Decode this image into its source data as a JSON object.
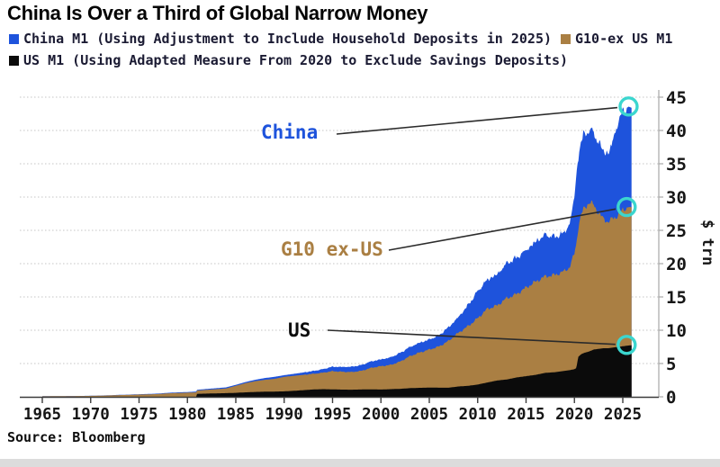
{
  "title": "China Is Over a Third of Global Narrow Money",
  "source": "Source: Bloomberg",
  "legend": [
    {
      "label": "China M1 (Using Adjustment to Include Household Deposits in 2025)",
      "color": "#1e53dc"
    },
    {
      "label": "G10-ex US M1",
      "color": "#aa7f43"
    },
    {
      "label": "US M1 (Using Adapted Measure From 2020 to Exclude Savings Deposits)",
      "color": "#0b0b0b"
    }
  ],
  "chart_data": {
    "type": "area",
    "stacked": true,
    "title": "China Is Over a Third of Global Narrow Money",
    "ylabel": "$ trn",
    "ylim": [
      0,
      45
    ],
    "yticks": [
      0,
      5,
      10,
      15,
      20,
      25,
      30,
      35,
      40,
      45
    ],
    "xticks": [
      1965,
      1970,
      1975,
      1980,
      1985,
      1990,
      1995,
      2000,
      2005,
      2010,
      2015,
      2020,
      2025
    ],
    "grid": "horizontal-dotted",
    "legend_position": "top",
    "columns": [
      "year",
      "us_m1_stack_top",
      "g10_ex_us_stack_top",
      "china_stack_top_total"
    ],
    "points": [
      [
        1965,
        0,
        0.08,
        0.09
      ],
      [
        1966,
        0,
        0.09,
        0.1
      ],
      [
        1967,
        0,
        0.1,
        0.11
      ],
      [
        1968,
        0,
        0.11,
        0.12
      ],
      [
        1969,
        0,
        0.12,
        0.13
      ],
      [
        1970,
        0,
        0.14,
        0.16
      ],
      [
        1971,
        0,
        0.17,
        0.19
      ],
      [
        1972,
        0,
        0.21,
        0.24
      ],
      [
        1973,
        0,
        0.26,
        0.3
      ],
      [
        1974,
        0,
        0.29,
        0.33
      ],
      [
        1975,
        0,
        0.34,
        0.39
      ],
      [
        1976,
        0,
        0.37,
        0.43
      ],
      [
        1977,
        0,
        0.42,
        0.49
      ],
      [
        1978,
        0,
        0.52,
        0.6
      ],
      [
        1979,
        0,
        0.58,
        0.67
      ],
      [
        1980,
        0,
        0.62,
        0.72
      ],
      [
        1980.9,
        0,
        0.67,
        0.78
      ],
      [
        1981,
        0.45,
        0.95,
        1.06
      ],
      [
        1982,
        0.48,
        1.05,
        1.18
      ],
      [
        1983,
        0.52,
        1.15,
        1.3
      ],
      [
        1984,
        0.55,
        1.25,
        1.42
      ],
      [
        1985,
        0.6,
        1.65,
        1.8
      ],
      [
        1986,
        0.67,
        2.05,
        2.22
      ],
      [
        1987,
        0.73,
        2.35,
        2.56
      ],
      [
        1988,
        0.77,
        2.55,
        2.82
      ],
      [
        1989,
        0.79,
        2.7,
        3.0
      ],
      [
        1990,
        0.82,
        3.0,
        3.25
      ],
      [
        1991,
        0.9,
        3.15,
        3.45
      ],
      [
        1992,
        1.0,
        3.3,
        3.66
      ],
      [
        1993,
        1.1,
        3.45,
        3.88
      ],
      [
        1994,
        1.15,
        3.62,
        4.15
      ],
      [
        1995,
        1.12,
        3.85,
        4.52
      ],
      [
        1996,
        1.08,
        3.76,
        4.48
      ],
      [
        1997,
        1.07,
        3.72,
        4.52
      ],
      [
        1998,
        1.1,
        3.9,
        4.78
      ],
      [
        1999,
        1.12,
        4.35,
        5.32
      ],
      [
        2000,
        1.09,
        4.6,
        5.62
      ],
      [
        2001,
        1.15,
        4.78,
        5.92
      ],
      [
        2002,
        1.2,
        5.3,
        6.6
      ],
      [
        2003,
        1.3,
        6.1,
        7.48
      ],
      [
        2004,
        1.35,
        6.65,
        8.12
      ],
      [
        2005,
        1.38,
        7.1,
        8.6
      ],
      [
        2006,
        1.37,
        7.55,
        9.25
      ],
      [
        2007,
        1.37,
        8.4,
        10.45
      ],
      [
        2008,
        1.55,
        9.6,
        11.95
      ],
      [
        2009,
        1.65,
        10.6,
        13.75
      ],
      [
        2010,
        1.84,
        11.8,
        15.85
      ],
      [
        2011,
        2.15,
        13.2,
        17.6
      ],
      [
        2012,
        2.45,
        13.7,
        18.35
      ],
      [
        2013,
        2.6,
        14.8,
        20.05
      ],
      [
        2014,
        2.9,
        15.4,
        20.85
      ],
      [
        2015,
        3.1,
        16.4,
        22.0
      ],
      [
        2016,
        3.3,
        17.3,
        23.3
      ],
      [
        2017,
        3.6,
        18.1,
        24.35
      ],
      [
        2018,
        3.7,
        18.3,
        24.0
      ],
      [
        2019,
        3.9,
        18.9,
        24.7
      ],
      [
        2019.5,
        4.0,
        19.5,
        26.0
      ],
      [
        2020,
        4.15,
        21.5,
        30.0
      ],
      [
        2020.2,
        4.3,
        23.0,
        33.0
      ],
      [
        2020.4,
        6.0,
        25.5,
        36.2
      ],
      [
        2020.7,
        6.4,
        27.3,
        38.4
      ],
      [
        2021,
        6.6,
        28.3,
        39.3
      ],
      [
        2021.5,
        6.8,
        29.2,
        40.1
      ],
      [
        2022,
        7.1,
        28.8,
        39.6
      ],
      [
        2022.5,
        7.2,
        27.6,
        38.2
      ],
      [
        2023,
        7.3,
        26.7,
        36.9
      ],
      [
        2023.5,
        7.3,
        26.3,
        36.5
      ],
      [
        2024,
        7.4,
        26.8,
        38.6
      ],
      [
        2024.3,
        7.45,
        27.0,
        40.0
      ],
      [
        2024.6,
        7.5,
        27.5,
        41.8
      ],
      [
        2025,
        7.6,
        28.0,
        42.6
      ],
      [
        2025.3,
        7.65,
        28.3,
        43.2
      ],
      [
        2025.6,
        7.7,
        28.5,
        43.6
      ],
      [
        2025.9,
        7.75,
        28.5,
        43.4
      ]
    ],
    "series": [
      {
        "name": "US M1",
        "color": "#0b0b0b"
      },
      {
        "name": "G10-ex US M1",
        "color": "#aa7f43"
      },
      {
        "name": "China M1",
        "color": "#1e53dc"
      }
    ],
    "annotations": [
      {
        "label": "China",
        "color": "#1e53dc",
        "target_year": 2025.6,
        "target_value": 43.6
      },
      {
        "label": "G10 ex-US",
        "color": "#aa7f43",
        "target_year": 2025.4,
        "target_value": 28.5
      },
      {
        "label": "US",
        "color": "#0d0d0d",
        "target_year": 2025.4,
        "target_value": 7.8
      }
    ],
    "marker_color": "#3bd6cf"
  }
}
